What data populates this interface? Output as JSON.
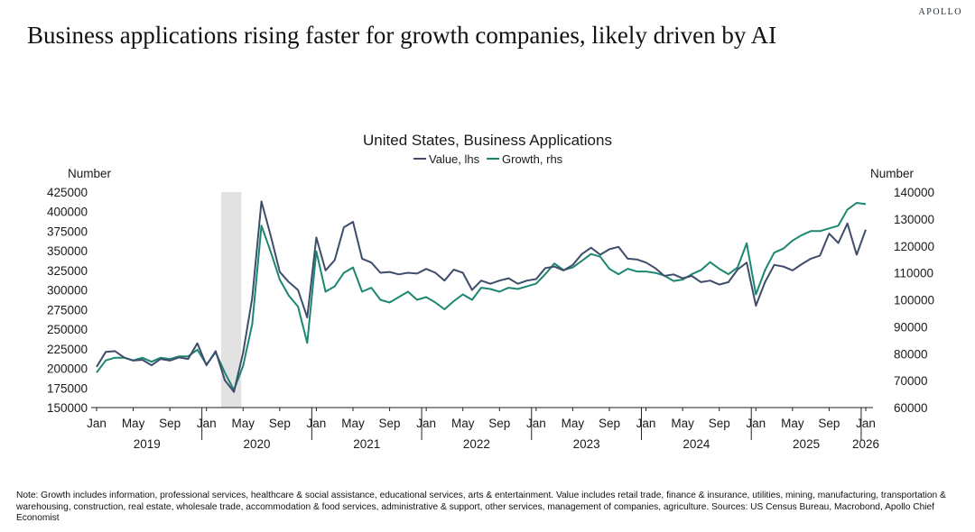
{
  "brand": "APOLLO",
  "headline": "Business applications rising faster for growth companies, likely driven by AI",
  "note": "Note: Growth includes information, professional services, healthcare & social assistance, educational services, arts & entertainment. Value includes retail trade, finance & insurance, utilities, mining, manufacturing, transportation & warehousing, construction, real estate, wholesale trade, accommodation & food services, administrative & support, other services, management of companies, agriculture. Sources: US Census Bureau, Macrobond, Apollo Chief Economist",
  "colors": {
    "value": "#3e4d6b",
    "growth": "#1c8770",
    "recession": "#e2e2e2",
    "axis": "#222222"
  },
  "chart_data": {
    "type": "line",
    "title": "United States, Business Applications",
    "left_axis_label": "Number",
    "right_axis_label": "Number",
    "left_ylim": [
      150000,
      425000
    ],
    "right_ylim": [
      60000,
      140000
    ],
    "left_ticks": [
      "425000",
      "400000",
      "375000",
      "350000",
      "325000",
      "300000",
      "275000",
      "250000",
      "225000",
      "200000",
      "175000",
      "150000"
    ],
    "right_ticks": [
      "140000",
      "130000",
      "120000",
      "110000",
      "100000",
      "90000",
      "80000",
      "70000",
      "60000"
    ],
    "month_ticks": [
      "Jan",
      "May",
      "Sep",
      "Jan",
      "May",
      "Sep",
      "Jan",
      "May",
      "Sep",
      "Jan",
      "May",
      "Sep",
      "Jan",
      "May",
      "Sep",
      "Jan",
      "May",
      "Sep",
      "Jan",
      "May",
      "Sep",
      "Jan"
    ],
    "year_labels": [
      "2019",
      "2020",
      "2021",
      "2022",
      "2023",
      "2024",
      "2025",
      "2026"
    ],
    "x_start": "2019-01",
    "recession_shading": [
      14,
      16
    ],
    "grid": false,
    "series": [
      {
        "name": "Value, lhs",
        "axis": "left",
        "values": [
          202000,
          221000,
          222000,
          214000,
          210000,
          211000,
          204000,
          212000,
          210000,
          214000,
          212000,
          232000,
          204000,
          222000,
          185000,
          170000,
          220000,
          290000,
          413000,
          370000,
          323000,
          310000,
          300000,
          265000,
          367000,
          325000,
          338000,
          380000,
          387000,
          340000,
          335000,
          322000,
          323000,
          320000,
          322000,
          321000,
          327000,
          322000,
          312000,
          326000,
          322000,
          300000,
          312000,
          308000,
          312000,
          315000,
          308000,
          312000,
          314000,
          328000,
          330000,
          325000,
          332000,
          346000,
          354000,
          345000,
          352000,
          355000,
          340000,
          339000,
          335000,
          328000,
          318000,
          320000,
          315000,
          318000,
          310000,
          312000,
          307000,
          310000,
          326000,
          335000,
          280000,
          310000,
          332000,
          330000,
          325000,
          333000,
          340000,
          344000,
          372000,
          360000,
          385000,
          345000,
          377000
        ]
      },
      {
        "name": "Growth, rhs",
        "axis": "right",
        "values": [
          73000,
          77500,
          78500,
          78500,
          77500,
          78500,
          77000,
          78500,
          78000,
          79000,
          79000,
          81500,
          76000,
          80500,
          73000,
          66500,
          75500,
          91000,
          127500,
          118000,
          107500,
          101500,
          97500,
          84000,
          118000,
          103000,
          105000,
          110000,
          112000,
          103000,
          104500,
          100000,
          99000,
          101000,
          103000,
          100000,
          101000,
          99000,
          96500,
          99500,
          102000,
          100000,
          104500,
          104000,
          103000,
          104500,
          104000,
          105000,
          106000,
          109500,
          113500,
          111000,
          112000,
          114500,
          117000,
          116000,
          111500,
          109500,
          111500,
          110500,
          110500,
          110000,
          109000,
          107000,
          107500,
          109500,
          111000,
          114000,
          111500,
          109500,
          112000,
          121000,
          102000,
          111000,
          117500,
          119000,
          122000,
          124000,
          125500,
          125500,
          126500,
          127500,
          133500,
          136000,
          135500
        ]
      }
    ]
  }
}
